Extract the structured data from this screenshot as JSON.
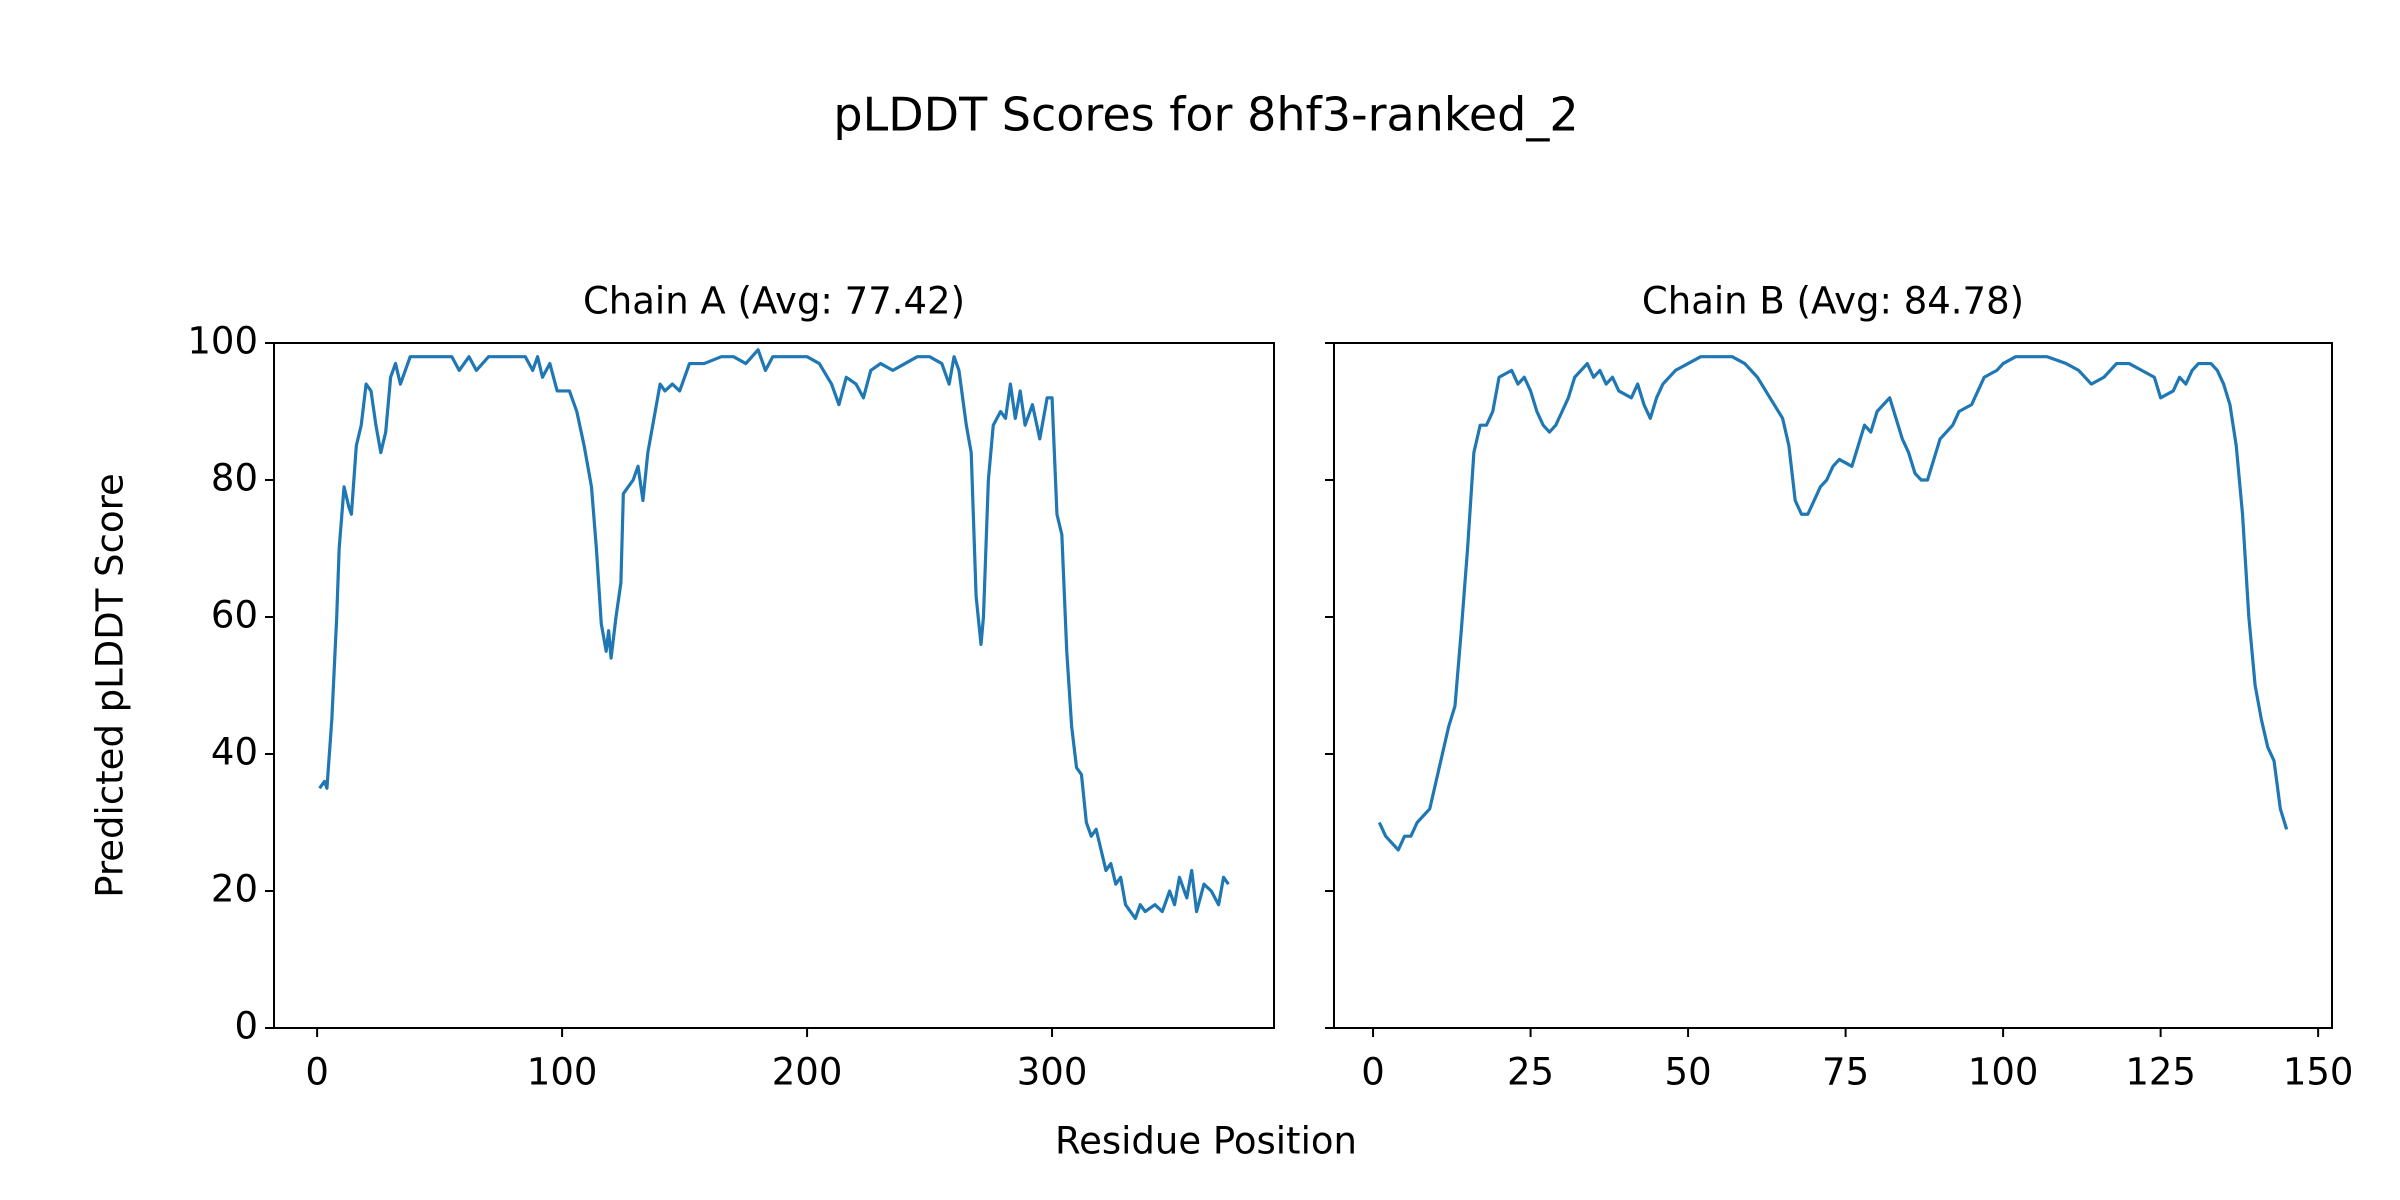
{
  "figure": {
    "title": "pLDDT Scores for 8hf3-ranked_2",
    "x_label": "Residue Position"
  },
  "chart_data": [
    {
      "type": "line",
      "title": "Chain A (Avg: 77.42)",
      "y_label": "Predicted pLDDT Score",
      "xlim": [
        -17.6,
        390.6
      ],
      "xticks": [
        0,
        100,
        200,
        300
      ],
      "ylim": [
        0,
        100
      ],
      "yticks": [
        0,
        20,
        40,
        60,
        80,
        100
      ],
      "grid": false,
      "series": [
        {
          "name": "Chain A",
          "color": "#1f77b4",
          "x": [
            1,
            3,
            4,
            6,
            8,
            9,
            11,
            13,
            14,
            16,
            18,
            20,
            22,
            24,
            26,
            28,
            30,
            32,
            34,
            38,
            45,
            55,
            58,
            62,
            65,
            70,
            80,
            85,
            88,
            90,
            92,
            95,
            98,
            103,
            106,
            109,
            112,
            114,
            116,
            118,
            119,
            120,
            122,
            124,
            125,
            127,
            129,
            131,
            133,
            135,
            138,
            140,
            142,
            145,
            148,
            152,
            158,
            165,
            170,
            175,
            180,
            183,
            186,
            190,
            200,
            205,
            210,
            213,
            216,
            220,
            223,
            226,
            230,
            235,
            240,
            245,
            250,
            255,
            258,
            260,
            262,
            265,
            267,
            269,
            271,
            272,
            274,
            276,
            279,
            281,
            283,
            285,
            287,
            289,
            292,
            295,
            298,
            300,
            302,
            304,
            306,
            308,
            310,
            312,
            314,
            316,
            318,
            320,
            322,
            324,
            326,
            328,
            330,
            332,
            334,
            336,
            338,
            342,
            345,
            348,
            350,
            352,
            355,
            357,
            359,
            362,
            365,
            368,
            370,
            372
          ],
          "values": [
            35,
            36,
            35,
            45,
            60,
            70,
            79,
            76,
            75,
            85,
            88,
            94,
            93,
            88,
            84,
            87,
            95,
            97,
            94,
            98,
            98,
            98,
            96,
            98,
            96,
            98,
            98,
            98,
            96,
            98,
            95,
            97,
            93,
            93,
            90,
            85,
            79,
            70,
            59,
            55,
            58,
            54,
            60,
            65,
            78,
            79,
            80,
            82,
            77,
            84,
            90,
            94,
            93,
            94,
            93,
            97,
            97,
            98,
            98,
            97,
            99,
            96,
            98,
            98,
            98,
            97,
            94,
            91,
            95,
            94,
            92,
            96,
            97,
            96,
            97,
            98,
            98,
            97,
            94,
            98,
            96,
            88,
            84,
            63,
            56,
            60,
            80,
            88,
            90,
            89,
            94,
            89,
            93,
            88,
            91,
            86,
            92,
            92,
            75,
            72,
            55,
            44,
            38,
            37,
            30,
            28,
            29,
            26,
            23,
            24,
            21,
            22,
            18,
            17,
            16,
            18,
            17,
            18,
            17,
            20,
            18,
            22,
            19,
            23,
            17,
            21,
            20,
            18,
            22,
            21
          ]
        }
      ]
    },
    {
      "type": "line",
      "title": "Chain B (Avg: 84.78)",
      "sharey": true,
      "xlim": [
        -6.2,
        152.2
      ],
      "xticks": [
        0,
        25,
        50,
        75,
        100,
        125,
        150
      ],
      "ylim": [
        0,
        100
      ],
      "yticks": [
        0,
        20,
        40,
        60,
        80,
        100
      ],
      "grid": false,
      "series": [
        {
          "name": "Chain B",
          "color": "#1f77b4",
          "x": [
            1,
            2,
            3,
            4,
            5,
            6,
            7,
            9,
            10,
            11,
            12,
            13,
            14,
            15,
            16,
            17,
            18,
            19,
            20,
            22,
            23,
            24,
            25,
            26,
            27,
            28,
            29,
            30,
            31,
            32,
            33,
            34,
            35,
            36,
            37,
            38,
            39,
            41,
            42,
            43,
            44,
            45,
            46,
            48,
            50,
            52,
            55,
            57,
            59,
            61,
            63,
            65,
            66,
            67,
            68,
            69,
            70,
            71,
            72,
            73,
            74,
            76,
            77,
            78,
            79,
            80,
            82,
            83,
            84,
            85,
            86,
            87,
            88,
            89,
            90,
            91,
            92,
            93,
            95,
            96,
            97,
            99,
            100,
            102,
            104,
            107,
            110,
            112,
            114,
            116,
            118,
            120,
            122,
            124,
            125,
            127,
            128,
            129,
            130,
            131,
            133,
            134,
            135,
            136,
            137,
            138,
            139,
            140,
            141,
            142,
            143,
            144,
            145
          ],
          "values": [
            30,
            28,
            27,
            26,
            28,
            28,
            30,
            32,
            36,
            40,
            44,
            47,
            58,
            70,
            84,
            88,
            88,
            90,
            95,
            96,
            94,
            95,
            93,
            90,
            88,
            87,
            88,
            90,
            92,
            95,
            96,
            97,
            95,
            96,
            94,
            95,
            93,
            92,
            94,
            91,
            89,
            92,
            94,
            96,
            97,
            98,
            98,
            98,
            97,
            95,
            92,
            89,
            85,
            77,
            75,
            75,
            77,
            79,
            80,
            82,
            83,
            82,
            85,
            88,
            87,
            90,
            92,
            89,
            86,
            84,
            81,
            80,
            80,
            83,
            86,
            87,
            88,
            90,
            91,
            93,
            95,
            96,
            97,
            98,
            98,
            98,
            97,
            96,
            94,
            95,
            97,
            97,
            96,
            95,
            92,
            93,
            95,
            94,
            96,
            97,
            97,
            96,
            94,
            91,
            85,
            75,
            60,
            50,
            45,
            41,
            39,
            32,
            29
          ]
        }
      ]
    }
  ]
}
